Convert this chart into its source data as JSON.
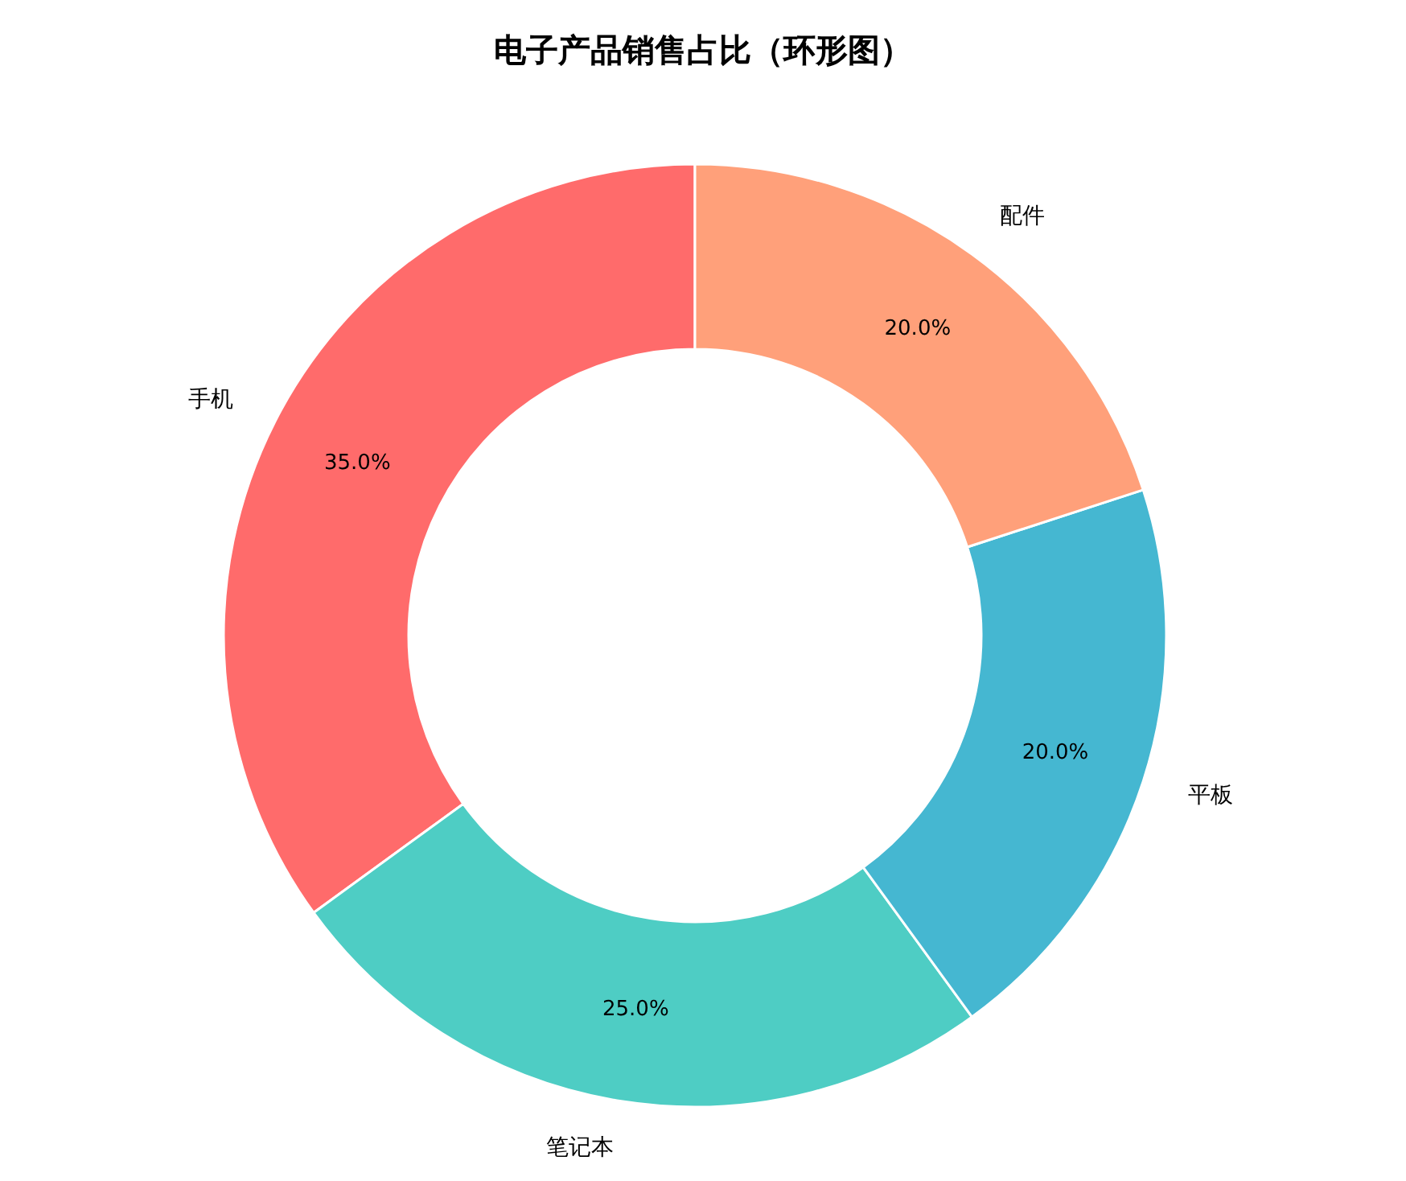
{
  "chart_data": {
    "type": "donut",
    "title": "电子产品销售占比（环形图）",
    "categories": [
      "手机",
      "笔记本",
      "平板",
      "配件"
    ],
    "values": [
      35,
      25,
      20,
      20
    ],
    "colors": [
      "#ff6b6b",
      "#4ecdc4",
      "#45b7d1",
      "#ffa07a"
    ],
    "value_labels": [
      "35.0%",
      "25.0%",
      "20.0%",
      "20.0%"
    ],
    "legend": false
  }
}
